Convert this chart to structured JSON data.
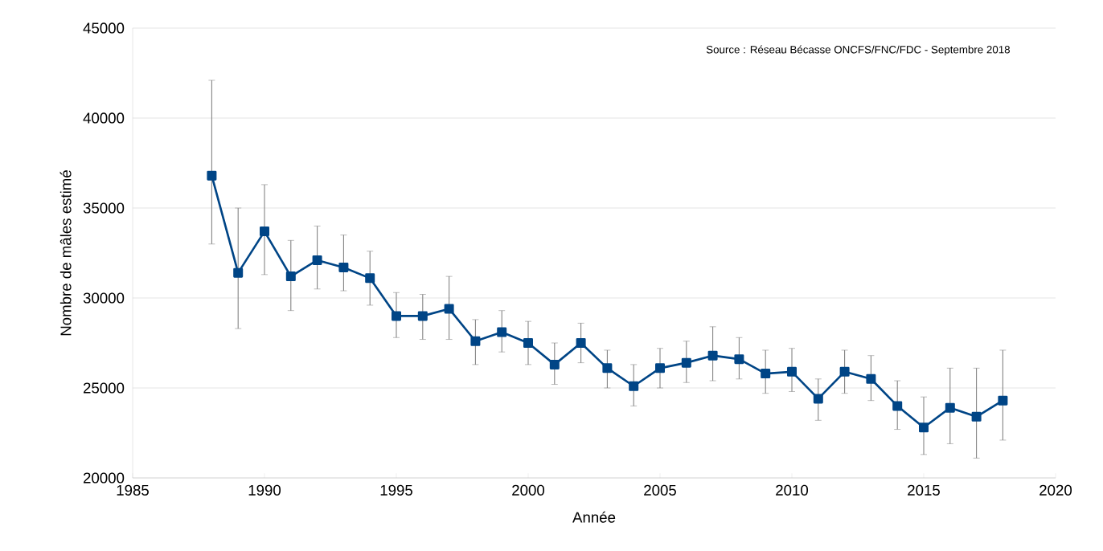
{
  "chart_data": {
    "type": "line",
    "xlabel": "Année",
    "ylabel": "Nombre de mâles estimé",
    "annotations": [
      "Source : Réseau Bécasse ONCFS/FNC/FDC - Septembre 2018"
    ],
    "x": [
      1988,
      1989,
      1990,
      1991,
      1992,
      1993,
      1994,
      1995,
      1996,
      1997,
      1998,
      1999,
      2000,
      2001,
      2002,
      2003,
      2004,
      2005,
      2006,
      2007,
      2008,
      2009,
      2010,
      2011,
      2012,
      2013,
      2014,
      2015,
      2016,
      2017,
      2018
    ],
    "values": [
      36800,
      31400,
      33700,
      31200,
      32100,
      31700,
      31100,
      29000,
      29000,
      29400,
      27600,
      28100,
      27500,
      26300,
      27500,
      26100,
      25100,
      26100,
      26400,
      26800,
      26600,
      25800,
      25900,
      24400,
      25900,
      25500,
      24000,
      22800,
      23900,
      23400,
      24300
    ],
    "errors": [
      [
        33000,
        42100
      ],
      [
        28300,
        35000
      ],
      [
        31300,
        36300
      ],
      [
        29300,
        33200
      ],
      [
        30500,
        34000
      ],
      [
        30400,
        33500
      ],
      [
        29600,
        32600
      ],
      [
        27800,
        30300
      ],
      [
        27700,
        30200
      ],
      [
        27700,
        31200
      ],
      [
        26300,
        28800
      ],
      [
        27000,
        29300
      ],
      [
        26300,
        28700
      ],
      [
        25200,
        27500
      ],
      [
        26400,
        28600
      ],
      [
        25000,
        27100
      ],
      [
        24000,
        26300
      ],
      [
        25000,
        27200
      ],
      [
        25300,
        27600
      ],
      [
        25400,
        28400
      ],
      [
        25500,
        27800
      ],
      [
        24700,
        27100
      ],
      [
        24800,
        27200
      ],
      [
        23200,
        25500
      ],
      [
        24700,
        27100
      ],
      [
        24300,
        26800
      ],
      [
        22700,
        25400
      ],
      [
        21300,
        24500
      ],
      [
        21900,
        26100
      ],
      [
        21100,
        26100
      ],
      [
        22100,
        27100
      ]
    ],
    "color": "#004586",
    "marker": "square",
    "line_style": "solid",
    "grid": "y",
    "xlim": [
      1985,
      2020
    ],
    "xticks": [
      1985,
      1990,
      1995,
      2000,
      2005,
      2010,
      2015,
      2020
    ],
    "ylim": [
      20000,
      45000
    ],
    "yticks": [
      20000,
      25000,
      30000,
      35000,
      40000,
      45000
    ]
  }
}
